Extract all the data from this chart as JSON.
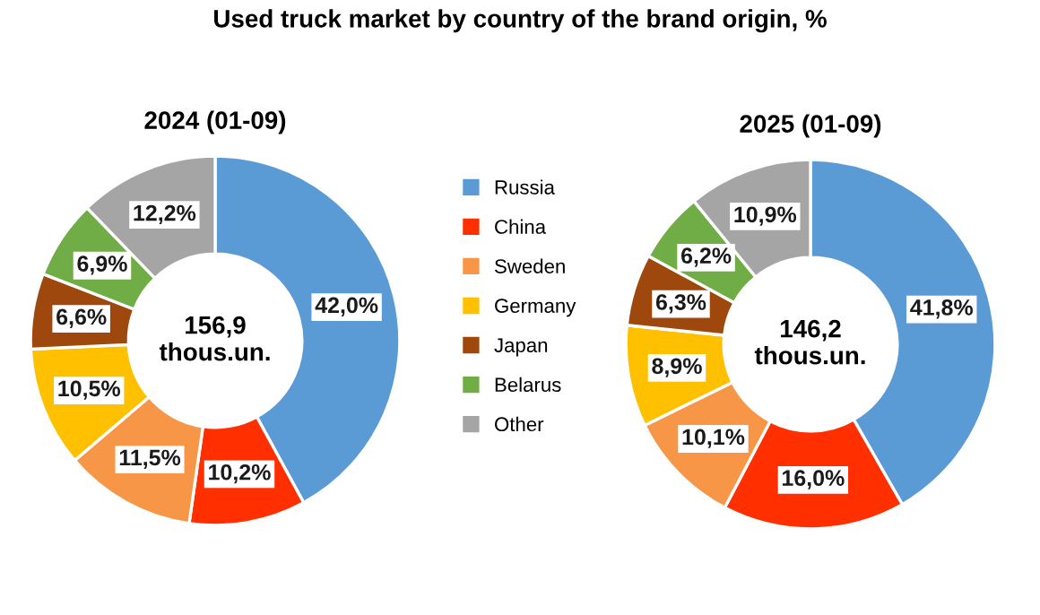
{
  "chart_data": [
    {
      "type": "donut",
      "title": "Used truck market by country of the brand origin, %",
      "subtitle": "2024 (01-09)",
      "categories": [
        "Russia",
        "China",
        "Sweden",
        "Germany",
        "Japan",
        "Belarus",
        "Other"
      ],
      "values": [
        42.0,
        10.2,
        11.5,
        10.5,
        6.6,
        6.9,
        12.2
      ],
      "value_labels": [
        "42,0%",
        "10,2%",
        "11,5%",
        "10,5%",
        "6,6%",
        "6,9%",
        "12,2%"
      ],
      "colors": [
        "#5b9bd5",
        "#ff2f00",
        "#f79646",
        "#ffc000",
        "#9e480e",
        "#70ad47",
        "#a5a5a5"
      ],
      "annotations": [
        "156,9\nthous.un."
      ],
      "legend": "right"
    },
    {
      "type": "donut",
      "subtitle": "2025 (01-09)",
      "categories": [
        null,
        null,
        null,
        null,
        null,
        null,
        null
      ],
      "values": [
        41.8,
        16.0,
        10.1,
        8.9,
        6.3,
        6.2,
        10.9
      ],
      "value_labels": [
        "41,8%",
        "16,0%",
        "10,1%",
        "8,9%",
        "6,3%",
        "6,2%",
        "10,9%"
      ],
      "colors": [
        "#5b9bd5",
        "#ff2f00",
        "#f79646",
        "#ffc000",
        "#9e480e",
        "#70ad47",
        "#a5a5a5"
      ],
      "annotations": [
        "146,2\nthous.un."
      ]
    }
  ]
}
